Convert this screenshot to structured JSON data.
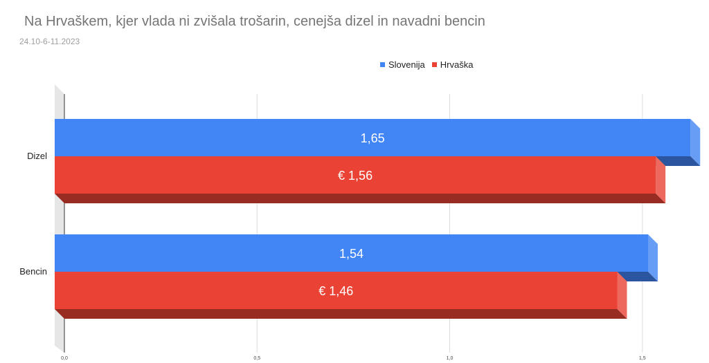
{
  "chart_data": {
    "type": "bar",
    "orientation": "horizontal",
    "title": "Na Hrvaškem, kjer vlada ni zvišala trošarin, cenejša dizel in navadni bencin",
    "subtitle": "24.10-6-11.2023",
    "categories": [
      "Dizel",
      "Bencin"
    ],
    "series": [
      {
        "name": "Slovenija",
        "color": "#4285f4",
        "values": [
          1.65,
          1.54
        ],
        "labels": [
          "1,65",
          "1,54"
        ]
      },
      {
        "name": "Hrvaška",
        "color": "#ea4335",
        "values": [
          1.56,
          1.46
        ],
        "labels": [
          "€ 1,56",
          "€ 1,46"
        ]
      }
    ],
    "xlim": [
      0,
      1.65
    ],
    "x_ticks": [
      {
        "value": 0,
        "label": "0,0"
      },
      {
        "value": 0.5,
        "label": "0,5"
      },
      {
        "value": 1.0,
        "label": "1,0"
      },
      {
        "value": 1.5,
        "label": "1,5"
      }
    ],
    "grid": true,
    "legend_position": "top",
    "style": "3d"
  }
}
